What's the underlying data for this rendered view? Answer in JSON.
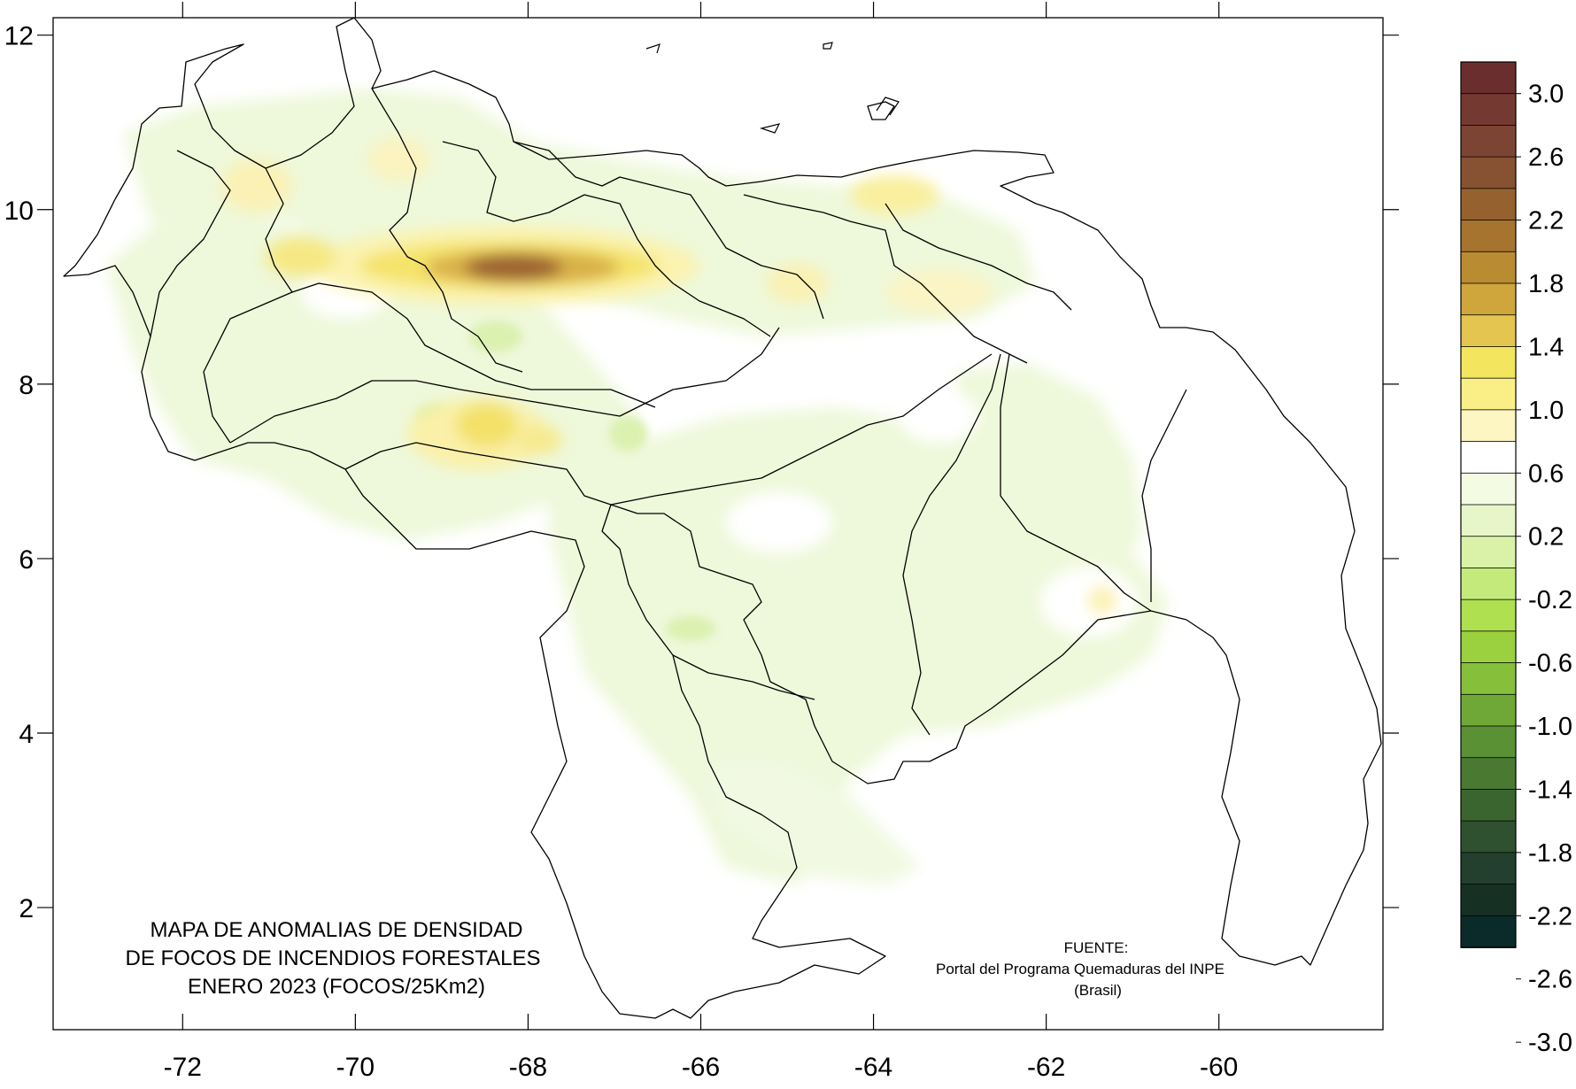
{
  "map": {
    "title_lines": [
      "MAPA DE ANOMALIAS DE DENSIDAD",
      "DE FOCOS DE INCENDIOS FORESTALES",
      "ENERO 2023 (FOCOS/25Km2)"
    ],
    "source_lines": [
      "FUENTE:",
      "Portal del Programa Quemaduras del INPE",
      "(Brasil)"
    ],
    "x_ticks": [
      "-72",
      "-70",
      "-68",
      "-66",
      "-64",
      "-62",
      "-60"
    ],
    "y_ticks": [
      "12",
      "10",
      "8",
      "6",
      "4",
      "2"
    ],
    "x_range": [
      -73.5,
      -58.1
    ],
    "y_range": [
      0.6,
      12.2
    ],
    "land_color": "#ffffff",
    "boundary_color": "#000000"
  },
  "colorbar": {
    "labels": [
      "3.0",
      "2.6",
      "2.2",
      "1.8",
      "1.4",
      "1.0",
      "0.6",
      "0.2",
      "-0.2",
      "-0.6",
      "-1.0",
      "-1.4",
      "-1.8",
      "-2.2",
      "-2.6",
      "-3.0"
    ],
    "colors_top_to_bottom": [
      "#6b2e2e",
      "#743a32",
      "#7c4533",
      "#875232",
      "#95622f",
      "#a6742e",
      "#ba8c31",
      "#cfa63b",
      "#e4c54f",
      "#f4e55f",
      "#faef87",
      "#fdf5c2",
      "#ffffff",
      "#f3fbe2",
      "#e7f6c8",
      "#d9f2a8",
      "#c4ea7c",
      "#aee050",
      "#9bd13f",
      "#86c03a",
      "#70a838",
      "#5b9135",
      "#4a7a32",
      "#3b652f",
      "#2f5130",
      "#233f2d",
      "#163024",
      "#0b2a2a"
    ]
  }
}
